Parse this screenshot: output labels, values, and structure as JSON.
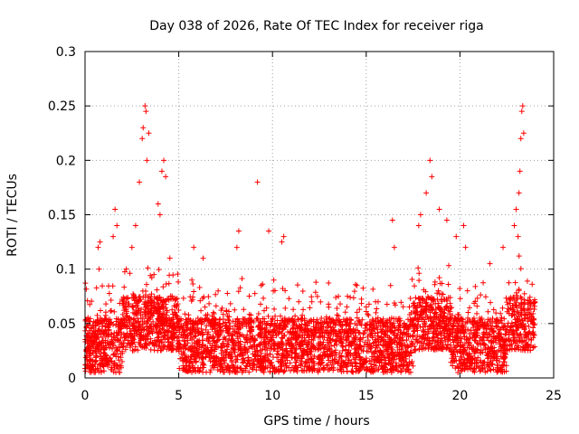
{
  "chart_data": {
    "type": "scatter",
    "title": "Day 038 of 2026, Rate Of TEC Index for receiver riga",
    "xlabel": "GPS time / hours",
    "ylabel": "ROTI / TECUs",
    "xlim": [
      0,
      25
    ],
    "ylim": [
      0,
      0.3
    ],
    "x_ticks": [
      0,
      5,
      10,
      15,
      20,
      25
    ],
    "y_ticks": [
      0,
      0.05,
      0.1,
      0.15,
      0.2,
      0.25,
      0.3
    ],
    "x_tick_labels": [
      "0",
      "5",
      "10",
      "15",
      "20",
      "25"
    ],
    "y_tick_labels": [
      "0",
      "0.05",
      "0.1",
      "0.15",
      "0.2",
      "0.25",
      "0.3"
    ],
    "grid": true,
    "marker": "+",
    "color": "#ff0000",
    "x_data_range": [
      0,
      24
    ],
    "series": [
      {
        "values_note_free": true,
        "points": [
          [
            3.1,
            0.23
          ],
          [
            3.2,
            0.25
          ],
          [
            3.25,
            0.245
          ],
          [
            3.05,
            0.22
          ],
          [
            2.9,
            0.18
          ],
          [
            3.3,
            0.2
          ],
          [
            3.4,
            0.225
          ],
          [
            4.2,
            0.2
          ],
          [
            4.1,
            0.19
          ],
          [
            4.3,
            0.185
          ],
          [
            3.9,
            0.16
          ],
          [
            4.0,
            0.15
          ],
          [
            2.7,
            0.14
          ],
          [
            1.6,
            0.155
          ],
          [
            1.7,
            0.14
          ],
          [
            1.5,
            0.13
          ],
          [
            0.7,
            0.12
          ],
          [
            0.8,
            0.125
          ],
          [
            0.75,
            0.1
          ],
          [
            2.2,
            0.1
          ],
          [
            2.5,
            0.12
          ],
          [
            9.2,
            0.18
          ],
          [
            8.2,
            0.135
          ],
          [
            8.1,
            0.12
          ],
          [
            9.8,
            0.135
          ],
          [
            10.5,
            0.125
          ],
          [
            10.6,
            0.13
          ],
          [
            9.4,
            0.085
          ],
          [
            16.4,
            0.145
          ],
          [
            16.5,
            0.12
          ],
          [
            16.3,
            0.085
          ],
          [
            18.4,
            0.2
          ],
          [
            18.5,
            0.185
          ],
          [
            18.2,
            0.17
          ],
          [
            17.9,
            0.15
          ],
          [
            17.8,
            0.14
          ],
          [
            18.9,
            0.155
          ],
          [
            19.3,
            0.145
          ],
          [
            19.8,
            0.13
          ],
          [
            20.2,
            0.14
          ],
          [
            20.3,
            0.12
          ],
          [
            21.6,
            0.105
          ],
          [
            23.1,
            0.13
          ],
          [
            23.3,
            0.245
          ],
          [
            23.35,
            0.25
          ],
          [
            23.25,
            0.22
          ],
          [
            23.4,
            0.225
          ],
          [
            23.2,
            0.19
          ],
          [
            23.15,
            0.17
          ],
          [
            23.0,
            0.155
          ],
          [
            22.9,
            0.14
          ],
          [
            22.3,
            0.12
          ],
          [
            24.0,
            0.07
          ],
          [
            5.8,
            0.12
          ],
          [
            5.7,
            0.09
          ],
          [
            6.3,
            0.11
          ],
          [
            7.1,
            0.08
          ],
          [
            13.0,
            0.065
          ],
          [
            14.0,
            0.075
          ],
          [
            14.5,
            0.085
          ],
          [
            15.5,
            0.07
          ],
          [
            12.1,
            0.07
          ],
          [
            11.4,
            0.07
          ]
        ]
      }
    ]
  }
}
